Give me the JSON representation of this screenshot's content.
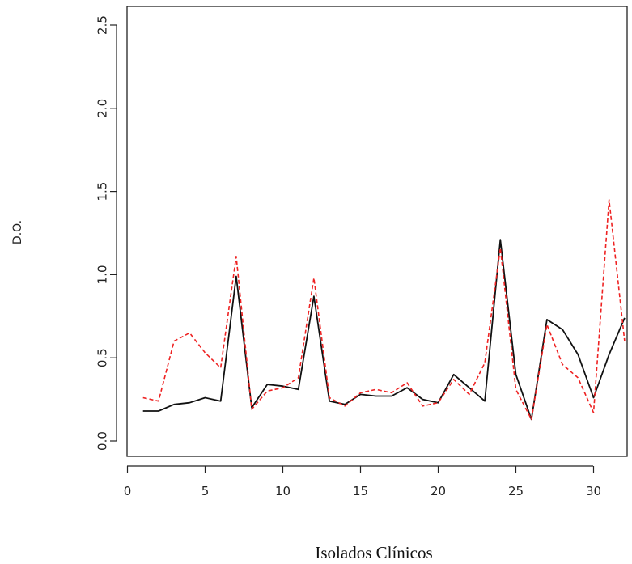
{
  "chart_data": {
    "type": "line",
    "xlabel": "Isolados Clínicos",
    "ylabel": "D.O.",
    "xlim": [
      0,
      32
    ],
    "ylim": [
      0,
      2.5
    ],
    "x_ticks": [
      "0",
      "5",
      "10",
      "15",
      "20",
      "25",
      "30"
    ],
    "y_ticks": [
      "0.0",
      "0.5",
      "1.0",
      "1.5",
      "2.0",
      "2.5"
    ],
    "x": [
      1,
      2,
      3,
      4,
      5,
      6,
      7,
      8,
      9,
      10,
      11,
      12,
      13,
      14,
      15,
      16,
      17,
      18,
      19,
      20,
      21,
      22,
      23,
      24,
      25,
      26,
      27,
      28,
      29,
      30,
      31,
      32
    ],
    "series": [
      {
        "color": "#111111",
        "style": "solid",
        "values": [
          0.18,
          0.18,
          0.22,
          0.23,
          0.26,
          0.24,
          0.99,
          0.2,
          0.34,
          0.33,
          0.31,
          0.87,
          0.24,
          0.22,
          0.28,
          0.27,
          0.27,
          0.32,
          0.25,
          0.23,
          0.4,
          0.32,
          0.24,
          1.21,
          0.4,
          0.13,
          0.73,
          0.67,
          0.52,
          0.26,
          0.52,
          0.74
        ]
      },
      {
        "color": "#ee2222",
        "style": "dashed",
        "values": [
          0.26,
          0.24,
          0.6,
          0.65,
          0.53,
          0.44,
          1.11,
          0.19,
          0.3,
          0.32,
          0.38,
          0.98,
          0.26,
          0.21,
          0.29,
          0.31,
          0.29,
          0.35,
          0.21,
          0.23,
          0.37,
          0.28,
          0.47,
          1.16,
          0.31,
          0.13,
          0.7,
          0.46,
          0.38,
          0.17,
          1.45,
          0.6
        ]
      }
    ]
  }
}
